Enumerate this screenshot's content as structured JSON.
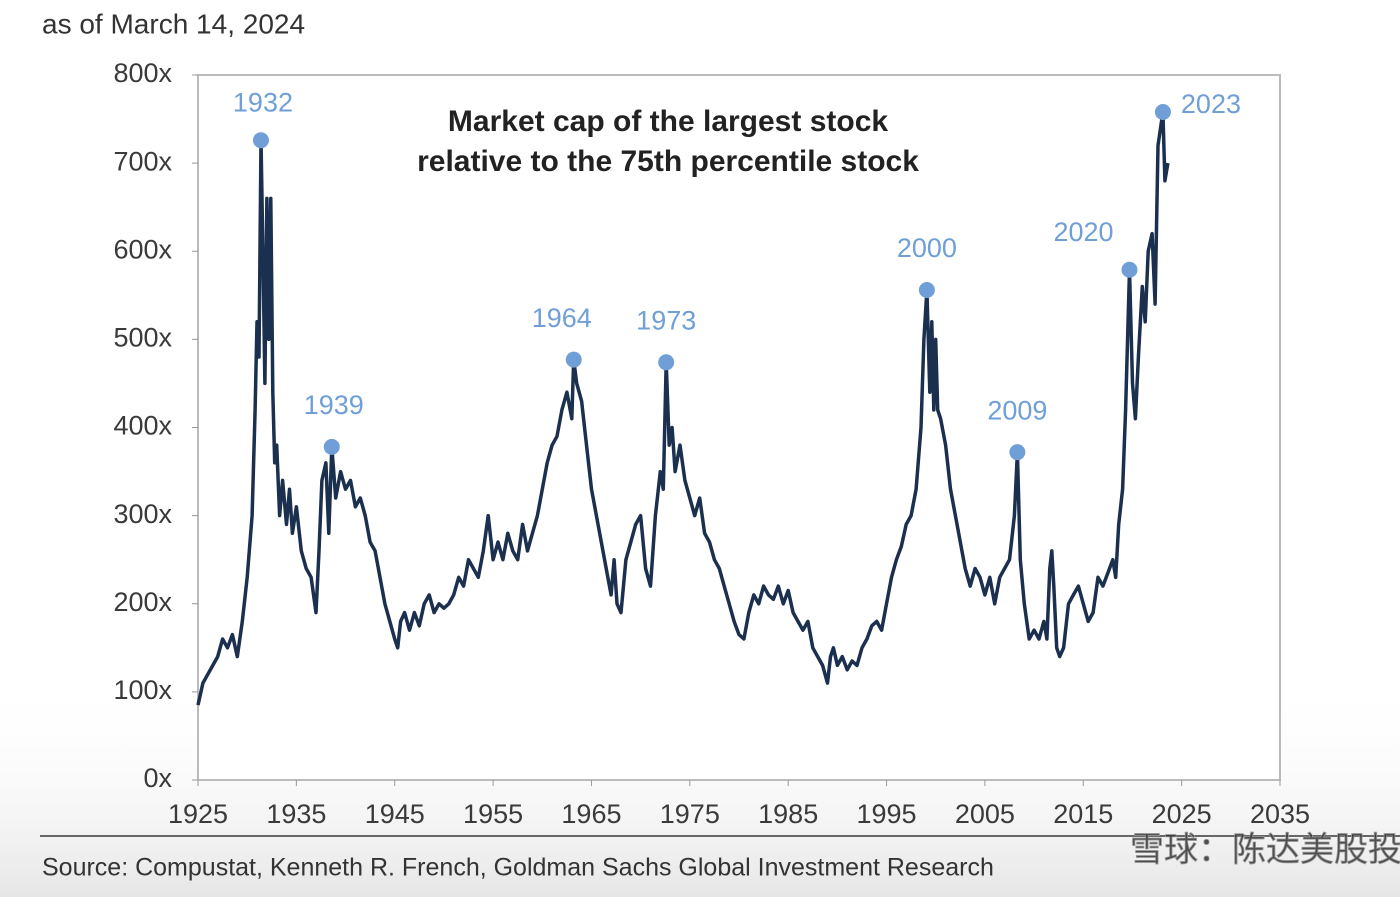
{
  "chart_data": {
    "type": "line",
    "subtitle": "as of March 14, 2024",
    "title": [
      "Market cap of the largest stock",
      "relative to the 75th percentile stock"
    ],
    "source": "Source: Compustat, Kenneth R. French, Goldman Sachs Global Investment Research",
    "watermark": "雪球：陈达美股投资",
    "xlim": [
      1925,
      2035
    ],
    "xticks": [
      1925,
      1935,
      1945,
      1955,
      1965,
      1975,
      1985,
      1995,
      2005,
      2015,
      2025,
      2035
    ],
    "ylim": [
      0,
      800
    ],
    "yticks": [
      {
        "value": 0,
        "label": "0x"
      },
      {
        "value": 100,
        "label": "100x"
      },
      {
        "value": 200,
        "label": "200x"
      },
      {
        "value": 300,
        "label": "300x"
      },
      {
        "value": 400,
        "label": "400x"
      },
      {
        "value": 500,
        "label": "500x"
      },
      {
        "value": 600,
        "label": "600x"
      },
      {
        "value": 700,
        "label": "700x"
      },
      {
        "value": 800,
        "label": "800x"
      }
    ],
    "color": "#1b2f4f",
    "x": [
      1925,
      1925.5,
      1926,
      1926.5,
      1927,
      1927.5,
      1928,
      1928.5,
      1929,
      1929.5,
      1930,
      1930.5,
      1930.8,
      1931,
      1931.2,
      1931.4,
      1931.6,
      1931.8,
      1932,
      1932.2,
      1932.4,
      1932.6,
      1932.8,
      1933,
      1933.3,
      1933.6,
      1934,
      1934.3,
      1934.6,
      1935,
      1935.5,
      1936,
      1936.5,
      1937,
      1937.3,
      1937.6,
      1938,
      1938.3,
      1938.6,
      1939,
      1939.5,
      1940,
      1940.5,
      1941,
      1941.5,
      1942,
      1942.5,
      1943,
      1943.5,
      1944,
      1944.5,
      1945,
      1945.3,
      1945.6,
      1946,
      1946.5,
      1947,
      1947.5,
      1948,
      1948.5,
      1949,
      1949.5,
      1950,
      1950.5,
      1951,
      1951.5,
      1952,
      1952.5,
      1953,
      1953.5,
      1954,
      1954.5,
      1955,
      1955.5,
      1956,
      1956.5,
      1957,
      1957.5,
      1958,
      1958.5,
      1959,
      1959.5,
      1960,
      1960.5,
      1961,
      1961.5,
      1962,
      1962.5,
      1963,
      1963.2,
      1963.5,
      1964,
      1964.5,
      1965,
      1965.5,
      1966,
      1966.5,
      1967,
      1967.3,
      1967.6,
      1968,
      1968.5,
      1969,
      1969.5,
      1970,
      1970.5,
      1971,
      1971.5,
      1972,
      1972.3,
      1972.6,
      1972.9,
      1973.2,
      1973.5,
      1974,
      1974.5,
      1975,
      1975.5,
      1976,
      1976.5,
      1977,
      1977.5,
      1978,
      1978.5,
      1979,
      1979.5,
      1980,
      1980.5,
      1981,
      1981.5,
      1982,
      1982.5,
      1983,
      1983.5,
      1984,
      1984.5,
      1985,
      1985.5,
      1986,
      1986.5,
      1987,
      1987.5,
      1988,
      1988.5,
      1989,
      1989.3,
      1989.6,
      1990,
      1990.5,
      1991,
      1991.5,
      1992,
      1992.5,
      1993,
      1993.5,
      1994,
      1994.5,
      1995,
      1995.5,
      1996,
      1996.5,
      1997,
      1997.5,
      1998,
      1998.5,
      1998.8,
      1999.1,
      1999.4,
      1999.6,
      1999.8,
      2000,
      2000.2,
      2000.5,
      2001,
      2001.5,
      2002,
      2002.5,
      2003,
      2003.5,
      2004,
      2004.5,
      2005,
      2005.5,
      2006,
      2006.5,
      2007,
      2007.5,
      2008,
      2008.3,
      2008.6,
      2009,
      2009.5,
      2010,
      2010.5,
      2011,
      2011.3,
      2011.6,
      2011.8,
      2012,
      2012.3,
      2012.6,
      2013,
      2013.5,
      2014,
      2014.5,
      2015,
      2015.5,
      2016,
      2016.5,
      2017,
      2017.5,
      2018,
      2018.3,
      2018.6,
      2019,
      2019.3,
      2019.7,
      2020,
      2020.3,
      2020.6,
      2021,
      2021.3,
      2021.6,
      2022,
      2022.3,
      2022.6,
      2023.1,
      2023.3,
      2023.6
    ],
    "values": [
      85,
      110,
      120,
      130,
      140,
      160,
      150,
      165,
      140,
      180,
      230,
      300,
      420,
      520,
      480,
      726,
      600,
      450,
      660,
      500,
      660,
      440,
      360,
      380,
      300,
      340,
      290,
      330,
      280,
      310,
      260,
      240,
      230,
      190,
      260,
      340,
      360,
      280,
      378,
      320,
      350,
      330,
      340,
      310,
      320,
      300,
      270,
      260,
      230,
      200,
      180,
      160,
      150,
      180,
      190,
      170,
      190,
      175,
      200,
      210,
      190,
      200,
      195,
      200,
      210,
      230,
      220,
      250,
      240,
      230,
      260,
      300,
      250,
      270,
      250,
      280,
      260,
      250,
      290,
      260,
      280,
      300,
      330,
      360,
      380,
      390,
      420,
      440,
      410,
      477,
      450,
      430,
      380,
      330,
      300,
      270,
      240,
      210,
      250,
      200,
      190,
      250,
      270,
      290,
      300,
      240,
      220,
      300,
      350,
      330,
      474,
      380,
      400,
      350,
      380,
      340,
      320,
      300,
      320,
      280,
      270,
      250,
      240,
      220,
      200,
      180,
      165,
      160,
      190,
      210,
      200,
      220,
      210,
      205,
      220,
      200,
      215,
      190,
      180,
      170,
      180,
      150,
      140,
      130,
      110,
      140,
      150,
      130,
      140,
      125,
      135,
      130,
      150,
      160,
      175,
      180,
      170,
      200,
      230,
      250,
      265,
      290,
      300,
      330,
      400,
      500,
      556,
      440,
      520,
      420,
      500,
      420,
      410,
      380,
      330,
      300,
      270,
      240,
      220,
      240,
      230,
      210,
      230,
      200,
      230,
      240,
      250,
      300,
      372,
      250,
      200,
      160,
      170,
      160,
      180,
      160,
      240,
      260,
      220,
      150,
      140,
      150,
      200,
      210,
      220,
      200,
      180,
      190,
      230,
      220,
      235,
      250,
      230,
      290,
      330,
      420,
      579,
      450,
      410,
      480,
      560,
      520,
      600,
      620,
      540,
      720,
      758,
      680,
      700
    ],
    "annotations": [
      {
        "label": "1932",
        "x": 1931.4,
        "y": 726
      },
      {
        "label": "1939",
        "x": 1938.6,
        "y": 378
      },
      {
        "label": "1964",
        "x": 1963.2,
        "y": 477
      },
      {
        "label": "1973",
        "x": 1972.6,
        "y": 474
      },
      {
        "label": "2000",
        "x": 1999.1,
        "y": 556
      },
      {
        "label": "2009",
        "x": 2008.3,
        "y": 372
      },
      {
        "label": "2020",
        "x": 2019.7,
        "y": 579
      },
      {
        "label": "2023",
        "x": 2023.1,
        "y": 758
      }
    ],
    "annotation_color": "#6f9fd6"
  }
}
